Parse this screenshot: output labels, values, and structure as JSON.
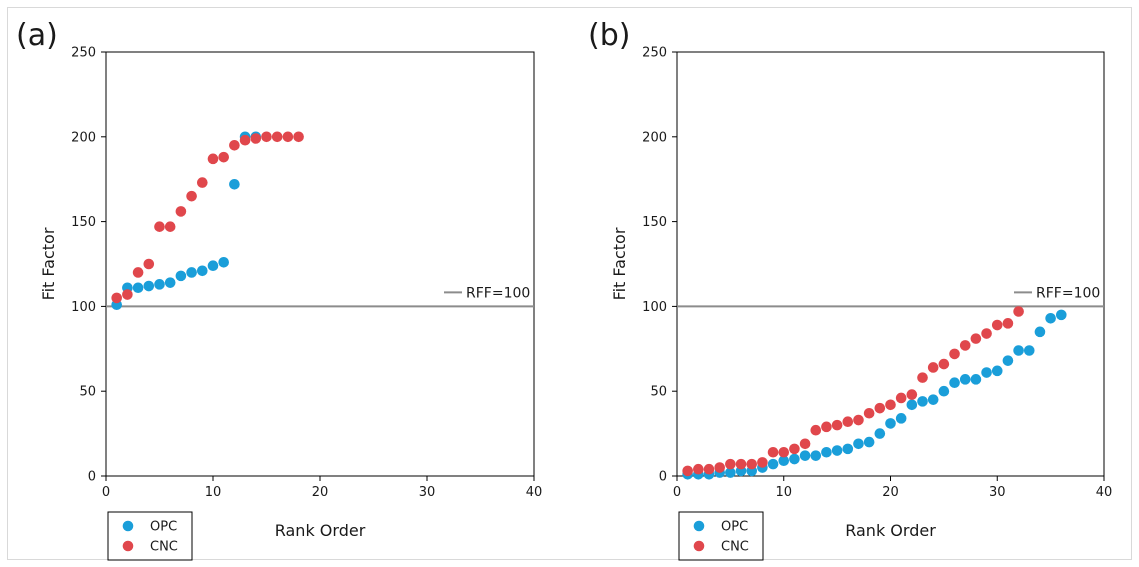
{
  "chart_data": [
    {
      "type": "scatter",
      "panel_label": "(a)",
      "xlabel": "Rank Order",
      "ylabel": "Fit Factor",
      "xlim": [
        0,
        40
      ],
      "ylim": [
        0,
        250
      ],
      "xticks": [
        "0",
        "10",
        "20",
        "30",
        "40"
      ],
      "yticks": [
        "0",
        "50",
        "100",
        "150",
        "200",
        "250"
      ],
      "reference_line": {
        "value": 100,
        "label": "RFF=100",
        "color": "#8c8c8c"
      },
      "legend_position": "bottom-left-outside",
      "grid": false,
      "series": [
        {
          "name": "OPC",
          "color": "#1a9ed9",
          "x": [
            1,
            2,
            3,
            4,
            5,
            6,
            7,
            8,
            9,
            10,
            11,
            12,
            13,
            14
          ],
          "y": [
            101,
            111,
            111,
            112,
            113,
            114,
            118,
            120,
            121,
            124,
            126,
            172,
            200,
            200
          ]
        },
        {
          "name": "CNC",
          "color": "#e0474c",
          "x": [
            1,
            2,
            3,
            4,
            5,
            6,
            7,
            8,
            9,
            10,
            11,
            12,
            13,
            14,
            15,
            16,
            17,
            18
          ],
          "y": [
            105,
            107,
            120,
            125,
            147,
            147,
            156,
            165,
            173,
            187,
            188,
            195,
            198,
            199,
            200,
            200,
            200,
            200
          ]
        }
      ]
    },
    {
      "type": "scatter",
      "panel_label": "(b)",
      "xlabel": "Rank Order",
      "ylabel": "Fit Factor",
      "xlim": [
        0,
        40
      ],
      "ylim": [
        0,
        250
      ],
      "xticks": [
        "0",
        "10",
        "20",
        "30",
        "40"
      ],
      "yticks": [
        "0",
        "50",
        "100",
        "150",
        "200",
        "250"
      ],
      "reference_line": {
        "value": 100,
        "label": "RFF=100",
        "color": "#8c8c8c"
      },
      "legend_position": "bottom-left-outside",
      "grid": false,
      "series": [
        {
          "name": "OPC",
          "color": "#1a9ed9",
          "x": [
            1,
            2,
            3,
            4,
            5,
            6,
            7,
            8,
            9,
            10,
            11,
            12,
            13,
            14,
            15,
            16,
            17,
            18,
            19,
            20,
            21,
            22,
            23,
            24,
            25,
            26,
            27,
            28,
            29,
            30,
            31,
            32,
            33,
            34,
            35,
            36
          ],
          "y": [
            1,
            1,
            1,
            2,
            2,
            3,
            3,
            5,
            7,
            9,
            10,
            12,
            12,
            14,
            15,
            16,
            19,
            20,
            25,
            31,
            34,
            42,
            44,
            45,
            50,
            55,
            57,
            57,
            61,
            62,
            68,
            74,
            74,
            85,
            93,
            95
          ]
        },
        {
          "name": "CNC",
          "color": "#e0474c",
          "x": [
            1,
            2,
            3,
            4,
            5,
            6,
            7,
            8,
            9,
            10,
            11,
            12,
            13,
            14,
            15,
            16,
            17,
            18,
            19,
            20,
            21,
            22,
            23,
            24,
            25,
            26,
            27,
            28,
            29,
            30,
            31,
            32
          ],
          "y": [
            3,
            4,
            4,
            5,
            7,
            7,
            7,
            8,
            14,
            14,
            16,
            19,
            27,
            29,
            30,
            32,
            33,
            37,
            40,
            42,
            46,
            48,
            58,
            64,
            66,
            72,
            77,
            81,
            84,
            89,
            90,
            97
          ]
        }
      ]
    }
  ]
}
